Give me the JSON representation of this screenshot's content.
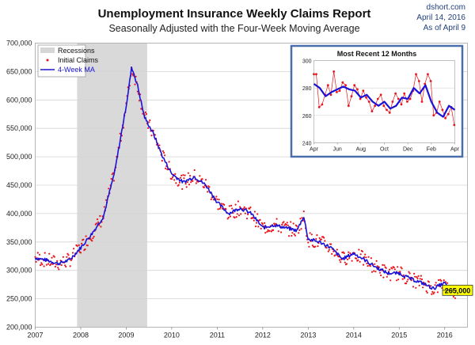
{
  "header": {
    "title": "Unemployment Insurance Weekly Claims Report",
    "subtitle": "Seasonally Adjusted with the Four-Week Moving Average",
    "source": "dshort.com",
    "date": "April 14, 2016",
    "as_of": "As of April 9"
  },
  "colors": {
    "claims": "#e8141b",
    "ma": "#1b12d8",
    "recession": "#d9d9d9",
    "grid": "#d4d4d4",
    "inset_border": "#4a6ea9",
    "callout_fill": "#ffff00"
  },
  "chart_data": [
    {
      "type": "line",
      "legend": {
        "placement": "top-left",
        "entries": [
          "Recessions",
          "Initial Claims",
          "4-Week MA"
        ]
      },
      "xlim": [
        2007.0,
        2016.5
      ],
      "ylim": [
        200000,
        700000
      ],
      "grid": true,
      "x_ticks": [
        "2007",
        "2008",
        "2009",
        "2010",
        "2011",
        "2012",
        "2013",
        "2014",
        "2015",
        "2016"
      ],
      "y_ticks": [
        "200,000",
        "250,000",
        "300,000",
        "350,000",
        "400,000",
        "450,000",
        "500,000",
        "550,000",
        "600,000",
        "650,000",
        "700,000"
      ],
      "y_tick_values": [
        200000,
        250000,
        300000,
        350000,
        400000,
        450000,
        500000,
        550000,
        600000,
        650000,
        700000
      ],
      "recessions": [
        [
          2007.92,
          2009.46
        ]
      ],
      "series": [
        {
          "name": "4-Week MA",
          "x": [
            2007.0,
            2007.25,
            2007.5,
            2007.75,
            2008.0,
            2008.25,
            2008.5,
            2008.75,
            2009.0,
            2009.12,
            2009.25,
            2009.4,
            2009.6,
            2009.8,
            2010.0,
            2010.25,
            2010.5,
            2010.75,
            2011.0,
            2011.25,
            2011.5,
            2011.75,
            2012.0,
            2012.25,
            2012.5,
            2012.75,
            2012.9,
            2013.0,
            2013.25,
            2013.5,
            2013.75,
            2014.0,
            2014.25,
            2014.5,
            2014.75,
            2015.0,
            2015.25,
            2015.5,
            2015.75,
            2016.0,
            2016.1,
            2016.2,
            2016.27
          ],
          "y": [
            322000,
            318000,
            312000,
            318000,
            340000,
            365000,
            395000,
            475000,
            590000,
            658000,
            625000,
            570000,
            540000,
            500000,
            470000,
            455000,
            465000,
            450000,
            420000,
            400000,
            410000,
            400000,
            375000,
            380000,
            375000,
            370000,
            395000,
            355000,
            350000,
            340000,
            320000,
            330000,
            318000,
            305000,
            295000,
            295000,
            285000,
            278000,
            268000,
            278000,
            265000,
            263000,
            265000
          ]
        }
      ],
      "callout": "265,000"
    },
    {
      "type": "line",
      "title": "Most Recent 12 Months",
      "ylim": [
        240,
        300
      ],
      "y_ticks": [
        "240",
        "260",
        "280",
        "300"
      ],
      "y_tick_values": [
        240,
        260,
        280,
        300
      ],
      "x_ticks": [
        "Apr",
        "Jun",
        "Aug",
        "Oct",
        "Dec",
        "Feb",
        "Apr"
      ],
      "x_tick_values": [
        0,
        2,
        4,
        6,
        8,
        10,
        12
      ],
      "series": [
        {
          "name": "Initial Claims",
          "x": [
            0,
            0.2,
            0.45,
            0.7,
            0.95,
            1.2,
            1.45,
            1.7,
            1.95,
            2.2,
            2.45,
            2.7,
            2.95,
            3.2,
            3.45,
            3.7,
            3.95,
            4.2,
            4.45,
            4.7,
            4.95,
            5.2,
            5.45,
            5.7,
            5.95,
            6.2,
            6.45,
            6.7,
            6.95,
            7.2,
            7.45,
            7.7,
            7.95,
            8.2,
            8.45,
            8.7,
            8.95,
            9.2,
            9.45,
            9.7,
            9.95,
            10.2,
            10.45,
            10.7,
            10.95,
            11.2,
            11.45,
            11.7,
            11.95
          ],
          "y": [
            290,
            290,
            266,
            268,
            275,
            282,
            275,
            292,
            277,
            278,
            284,
            282,
            267,
            274,
            282,
            279,
            272,
            278,
            273,
            270,
            263,
            267,
            272,
            275,
            267,
            264,
            262,
            270,
            276,
            272,
            268,
            276,
            270,
            272,
            278,
            290,
            285,
            270,
            283,
            290,
            285,
            260,
            262,
            270,
            264,
            258,
            261,
            266,
            253
          ]
        },
        {
          "name": "4-Week MA",
          "x": [
            0,
            0.5,
            1.0,
            1.5,
            2.0,
            2.5,
            3.0,
            3.5,
            4.0,
            4.5,
            5.0,
            5.5,
            6.0,
            6.5,
            7.0,
            7.5,
            8.0,
            8.5,
            9.0,
            9.5,
            10.0,
            10.5,
            11.0,
            11.5,
            12.0
          ],
          "y": [
            283,
            280,
            274,
            277,
            279,
            281,
            279,
            278,
            273,
            275,
            270,
            267,
            270,
            265,
            267,
            273,
            272,
            280,
            276,
            282,
            270,
            262,
            259,
            267,
            264
          ]
        }
      ]
    }
  ]
}
